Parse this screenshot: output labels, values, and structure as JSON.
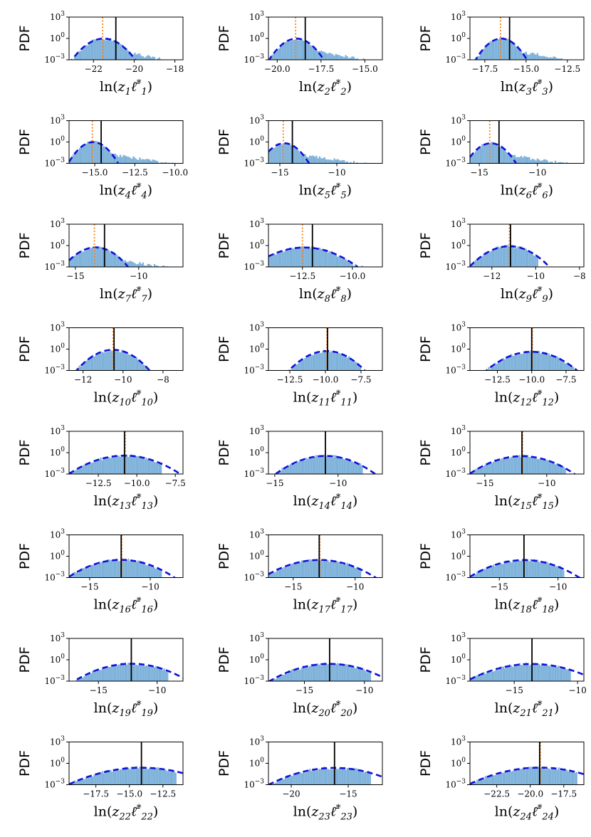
{
  "figure": {
    "y_axis_label": "PDF",
    "y_ticks": [
      {
        "base": "10",
        "exp": "3"
      },
      {
        "base": "10",
        "exp": "0"
      },
      {
        "base": "10",
        "exp": "−3"
      }
    ],
    "colors": {
      "histogram": "#7fb2da",
      "histogram_edge": "#5b9bd0",
      "gaussian_fit": "#1010d8",
      "median_line": "#000000",
      "mean_line": "#ff7f0e",
      "axes": "#000000"
    }
  },
  "chart_data": [
    {
      "index": 1,
      "type": "histogram",
      "xlabel": {
        "prefix": "ln(",
        "var": "z",
        "sub": "1",
        "suffix": ")"
      },
      "xlim": [
        -23.2,
        -17.6
      ],
      "xticks": [
        -22,
        -20,
        -18
      ],
      "xtick_labels": [
        "−22",
        "−20",
        "−18"
      ],
      "ylim_log10": [
        -3,
        3
      ],
      "yscale": "log",
      "fit_mean": -21.5,
      "fit_sigma": 0.42,
      "median": -20.9,
      "mean": -21.55,
      "tail_end": -18.0
    },
    {
      "index": 2,
      "type": "histogram",
      "xlabel": {
        "prefix": "ln(",
        "var": "z",
        "sub": "2",
        "suffix": ")"
      },
      "xlim": [
        -20.5,
        -14.0
      ],
      "xticks": [
        -20.0,
        -17.5,
        -15.0
      ],
      "xtick_labels": [
        "−20.0",
        "−17.5",
        "−15.0"
      ],
      "ylim_log10": [
        -3,
        3
      ],
      "yscale": "log",
      "fit_mean": -18.9,
      "fit_sigma": 0.42,
      "median": -18.4,
      "mean": -18.95,
      "tail_end": -14.3
    },
    {
      "index": 3,
      "type": "histogram",
      "xlabel": {
        "prefix": "ln(",
        "var": "z",
        "sub": "3",
        "suffix": ")"
      },
      "xlim": [
        -18.4,
        -11.5
      ],
      "xticks": [
        -17.5,
        -15.0,
        -12.5
      ],
      "xtick_labels": [
        "−17.5",
        "−15.0",
        "−12.5"
      ],
      "ylim_log10": [
        -3,
        3
      ],
      "yscale": "log",
      "fit_mean": -16.5,
      "fit_sigma": 0.42,
      "median": -16.0,
      "mean": -16.55,
      "tail_end": -12.0
    },
    {
      "index": 4,
      "type": "histogram",
      "xlabel": {
        "prefix": "ln(",
        "var": "z",
        "sub": "4",
        "suffix": ")"
      },
      "xlim": [
        -16.6,
        -9.5
      ],
      "xticks": [
        -15.0,
        -12.5,
        -10.0
      ],
      "xtick_labels": [
        "−15.0",
        "−12.5",
        "−10.0"
      ],
      "ylim_log10": [
        -3,
        3
      ],
      "yscale": "log",
      "fit_mean": -15.1,
      "fit_sigma": 0.42,
      "median": -14.6,
      "mean": -15.15,
      "tail_end": -9.6
    },
    {
      "index": 5,
      "type": "histogram",
      "xlabel": {
        "prefix": "ln(",
        "var": "z",
        "sub": "5",
        "suffix": ")"
      },
      "xlim": [
        -16.0,
        -6.0
      ],
      "xticks": [
        -15,
        -10
      ],
      "xtick_labels": [
        "−15",
        "−10"
      ],
      "ylim_log10": [
        -3,
        3
      ],
      "yscale": "log",
      "fit_mean": -14.6,
      "fit_sigma": 0.6,
      "median": -13.9,
      "mean": -14.7,
      "tail_end": -6.5
    },
    {
      "index": 6,
      "type": "histogram",
      "xlabel": {
        "prefix": "ln(",
        "var": "z",
        "sub": "6",
        "suffix": ")"
      },
      "xlim": [
        -15.8,
        -6.0
      ],
      "xticks": [
        -15,
        -10
      ],
      "xtick_labels": [
        "−15",
        "−10"
      ],
      "ylim_log10": [
        -3,
        3
      ],
      "yscale": "log",
      "fit_mean": -14.0,
      "fit_sigma": 0.6,
      "median": -13.3,
      "mean": -14.1,
      "tail_end": -6.5
    },
    {
      "index": 7,
      "type": "histogram",
      "xlabel": {
        "prefix": "ln(",
        "var": "z",
        "sub": "7",
        "suffix": ")"
      },
      "xlim": [
        -15.5,
        -6.5
      ],
      "xticks": [
        -15,
        -10
      ],
      "xtick_labels": [
        "−15",
        "−10"
      ],
      "ylim_log10": [
        -3,
        3
      ],
      "yscale": "log",
      "fit_mean": -13.4,
      "fit_sigma": 0.72,
      "median": -12.7,
      "mean": -13.5,
      "tail_end": -7.0
    },
    {
      "index": 8,
      "type": "histogram",
      "xlabel": {
        "prefix": "ln(",
        "var": "z",
        "sub": "8",
        "suffix": ")"
      },
      "xlim": [
        -14.2,
        -8.5
      ],
      "xticks": [
        -12.5,
        -10.0
      ],
      "xtick_labels": [
        "−12.5",
        "−10.0"
      ],
      "ylim_log10": [
        -3,
        3
      ],
      "yscale": "log",
      "fit_mean": -12.4,
      "fit_sigma": 0.75,
      "median": -12.0,
      "mean": -12.5,
      "tail_end": -9.0
    },
    {
      "index": 9,
      "type": "histogram",
      "xlabel": {
        "prefix": "ln(",
        "var": "z",
        "sub": "9",
        "suffix": ")"
      },
      "xlim": [
        -13.0,
        -7.8
      ],
      "xticks": [
        -12,
        -10,
        -8
      ],
      "xtick_labels": [
        "−12",
        "−10",
        "−8"
      ],
      "ylim_log10": [
        -3,
        3
      ],
      "yscale": "log",
      "fit_mean": -11.2,
      "fit_sigma": 0.5,
      "median": -11.15,
      "mean": -11.2,
      "tail_end": -9.9
    },
    {
      "index": 10,
      "type": "histogram",
      "xlabel": {
        "prefix": "ln(",
        "var": "z",
        "sub": "10",
        "suffix": ")"
      },
      "xlim": [
        -12.7,
        -7.0
      ],
      "xticks": [
        -12,
        -10,
        -8
      ],
      "xtick_labels": [
        "−12",
        "−10",
        "−8"
      ],
      "ylim_log10": [
        -3,
        3
      ],
      "yscale": "log",
      "fit_mean": -10.5,
      "fit_sigma": 0.5,
      "median": -10.45,
      "mean": -10.5,
      "tail_end": -8.3
    },
    {
      "index": 11,
      "type": "histogram",
      "xlabel": {
        "prefix": "ln(",
        "var": "z",
        "sub": "11",
        "suffix": ")"
      },
      "xlim": [
        -14.0,
        -6.0
      ],
      "xticks": [
        -12.5,
        -10.0,
        -7.5
      ],
      "xtick_labels": [
        "−12.5",
        "−10.0",
        "−7.5"
      ],
      "ylim_log10": [
        -3,
        3
      ],
      "yscale": "log",
      "fit_mean": -9.9,
      "fit_sigma": 0.75,
      "median": -9.85,
      "mean": -9.9,
      "tail_end": -7.5
    },
    {
      "index": 12,
      "type": "histogram",
      "xlabel": {
        "prefix": "ln(",
        "var": "z",
        "sub": "12",
        "suffix": ")"
      },
      "xlim": [
        -14.5,
        -6.2
      ],
      "xticks": [
        -12.5,
        -10.0,
        -7.5
      ],
      "xtick_labels": [
        "−12.5",
        "−10.0",
        "−7.5"
      ],
      "ylim_log10": [
        -3,
        3
      ],
      "yscale": "log",
      "fit_mean": -10.0,
      "fit_sigma": 0.95,
      "median": -10.0,
      "mean": -9.95,
      "tail_end": -6.8
    },
    {
      "index": 13,
      "type": "histogram",
      "xlabel": {
        "prefix": "ln(",
        "var": "z",
        "sub": "13",
        "suffix": ")"
      },
      "xlim": [
        -14.4,
        -7.0
      ],
      "xticks": [
        -12.5,
        -10.0,
        -7.5
      ],
      "xtick_labels": [
        "−12.5",
        "−10.0",
        "−7.5"
      ],
      "ylim_log10": [
        -3,
        3
      ],
      "yscale": "log",
      "fit_mean": -10.8,
      "fit_sigma": 1.05,
      "median": -10.8,
      "mean": -10.75,
      "tail_end": -8.4
    },
    {
      "index": 14,
      "type": "histogram",
      "xlabel": {
        "prefix": "ln(",
        "var": "z",
        "sub": "14",
        "suffix": ")"
      },
      "xlim": [
        -15.5,
        -6.5
      ],
      "xticks": [
        -15,
        -10
      ],
      "xtick_labels": [
        "−15",
        "−10"
      ],
      "ylim_log10": [
        -3,
        3
      ],
      "yscale": "log",
      "fit_mean": -11.0,
      "fit_sigma": 1.15,
      "median": -11.0,
      "mean": -11.0,
      "tail_end": -8.0
    },
    {
      "index": 15,
      "type": "histogram",
      "xlabel": {
        "prefix": "ln(",
        "var": "z",
        "sub": "15",
        "suffix": ")"
      },
      "xlim": [
        -16.2,
        -7.0
      ],
      "xticks": [
        -15,
        -10
      ],
      "xtick_labels": [
        "−15",
        "−10"
      ],
      "ylim_log10": [
        -3,
        3
      ],
      "yscale": "log",
      "fit_mean": -12.0,
      "fit_sigma": 1.25,
      "median": -12.0,
      "mean": -11.95,
      "tail_end": -8.5
    },
    {
      "index": 16,
      "type": "histogram",
      "xlabel": {
        "prefix": "ln(",
        "var": "z",
        "sub": "16",
        "suffix": ")"
      },
      "xlim": [
        -16.7,
        -7.3
      ],
      "xticks": [
        -15,
        -10
      ],
      "xtick_labels": [
        "−15",
        "−10"
      ],
      "ylim_log10": [
        -3,
        3
      ],
      "yscale": "log",
      "fit_mean": -12.4,
      "fit_sigma": 1.3,
      "median": -12.4,
      "mean": -12.35,
      "tail_end": -9.0
    },
    {
      "index": 17,
      "type": "histogram",
      "xlabel": {
        "prefix": "ln(",
        "var": "z",
        "sub": "17",
        "suffix": ")"
      },
      "xlim": [
        -17.0,
        -7.8
      ],
      "xticks": [
        -15,
        -10
      ],
      "xtick_labels": [
        "−15",
        "−10"
      ],
      "ylim_log10": [
        -3,
        3
      ],
      "yscale": "log",
      "fit_mean": -12.9,
      "fit_sigma": 1.35,
      "median": -12.9,
      "mean": -12.85,
      "tail_end": -9.5
    },
    {
      "index": 18,
      "type": "histogram",
      "xlabel": {
        "prefix": "ln(",
        "var": "z",
        "sub": "18",
        "suffix": ")"
      },
      "xlim": [
        -17.5,
        -7.8
      ],
      "xticks": [
        -15,
        -10
      ],
      "xtick_labels": [
        "−15",
        "−10"
      ],
      "ylim_log10": [
        -3,
        3
      ],
      "yscale": "log",
      "fit_mean": -12.9,
      "fit_sigma": 1.4,
      "median": -12.9,
      "mean": -12.9,
      "tail_end": -9.5
    },
    {
      "index": 19,
      "type": "histogram",
      "xlabel": {
        "prefix": "ln(",
        "var": "z",
        "sub": "19",
        "suffix": ")"
      },
      "xlim": [
        -17.5,
        -7.8
      ],
      "xticks": [
        -15,
        -10
      ],
      "xtick_labels": [
        "−15",
        "−10"
      ],
      "ylim_log10": [
        -3,
        3
      ],
      "yscale": "log",
      "fit_mean": -12.2,
      "fit_sigma": 1.45,
      "median": -12.2,
      "mean": -12.2,
      "tail_end": -9.0
    },
    {
      "index": 20,
      "type": "histogram",
      "xlabel": {
        "prefix": "ln(",
        "var": "z",
        "sub": "20",
        "suffix": ")"
      },
      "xlim": [
        -18.0,
        -8.5
      ],
      "xticks": [
        -15,
        -10
      ],
      "xtick_labels": [
        "−15",
        "−10"
      ],
      "ylim_log10": [
        -3,
        3
      ],
      "yscale": "log",
      "fit_mean": -12.9,
      "fit_sigma": 1.5,
      "median": -12.9,
      "mean": -12.9,
      "tail_end": -9.5
    },
    {
      "index": 21,
      "type": "histogram",
      "xlabel": {
        "prefix": "ln(",
        "var": "z",
        "sub": "21",
        "suffix": ")"
      },
      "xlim": [
        -18.5,
        -9.5
      ],
      "xticks": [
        -15,
        -10
      ],
      "xtick_labels": [
        "−15",
        "−10"
      ],
      "ylim_log10": [
        -3,
        3
      ],
      "yscale": "log",
      "fit_mean": -13.6,
      "fit_sigma": 1.55,
      "median": -13.6,
      "mean": -13.6,
      "tail_end": -10.5
    },
    {
      "index": 22,
      "type": "histogram",
      "xlabel": {
        "prefix": "ln(",
        "var": "z",
        "sub": "22",
        "suffix": ")"
      },
      "xlim": [
        -19.5,
        -11.0
      ],
      "xticks": [
        -17.5,
        -15.0,
        -12.5
      ],
      "xtick_labels": [
        "−17.5",
        "−15.0",
        "−12.5"
      ],
      "ylim_log10": [
        -3,
        3
      ],
      "yscale": "log",
      "fit_mean": -14.1,
      "fit_sigma": 1.65,
      "median": -14.1,
      "mean": -14.1,
      "tail_end": -11.5
    },
    {
      "index": 23,
      "type": "histogram",
      "xlabel": {
        "prefix": "ln(",
        "var": "z",
        "sub": "23",
        "suffix": ")"
      },
      "xlim": [
        -22.0,
        -12.0
      ],
      "xticks": [
        -20,
        -15
      ],
      "xtick_labels": [
        "−20",
        "−15"
      ],
      "ylim_log10": [
        -3,
        3
      ],
      "yscale": "log",
      "fit_mean": -16.2,
      "fit_sigma": 1.75,
      "median": -16.2,
      "mean": -16.2,
      "tail_end": -13.0
    },
    {
      "index": 24,
      "type": "histogram",
      "xlabel": {
        "prefix": "ln(",
        "var": "z",
        "sub": "24",
        "suffix": ")"
      },
      "xlim": [
        -24.5,
        -16.0
      ],
      "xticks": [
        -22.5,
        -20.0,
        -17.5
      ],
      "xtick_labels": [
        "−22.5",
        "−20.0",
        "−17.5"
      ],
      "ylim_log10": [
        -3,
        3
      ],
      "yscale": "log",
      "fit_mean": -19.3,
      "fit_sigma": 1.6,
      "median": -19.3,
      "mean": -19.25,
      "tail_end": -16.5
    }
  ]
}
